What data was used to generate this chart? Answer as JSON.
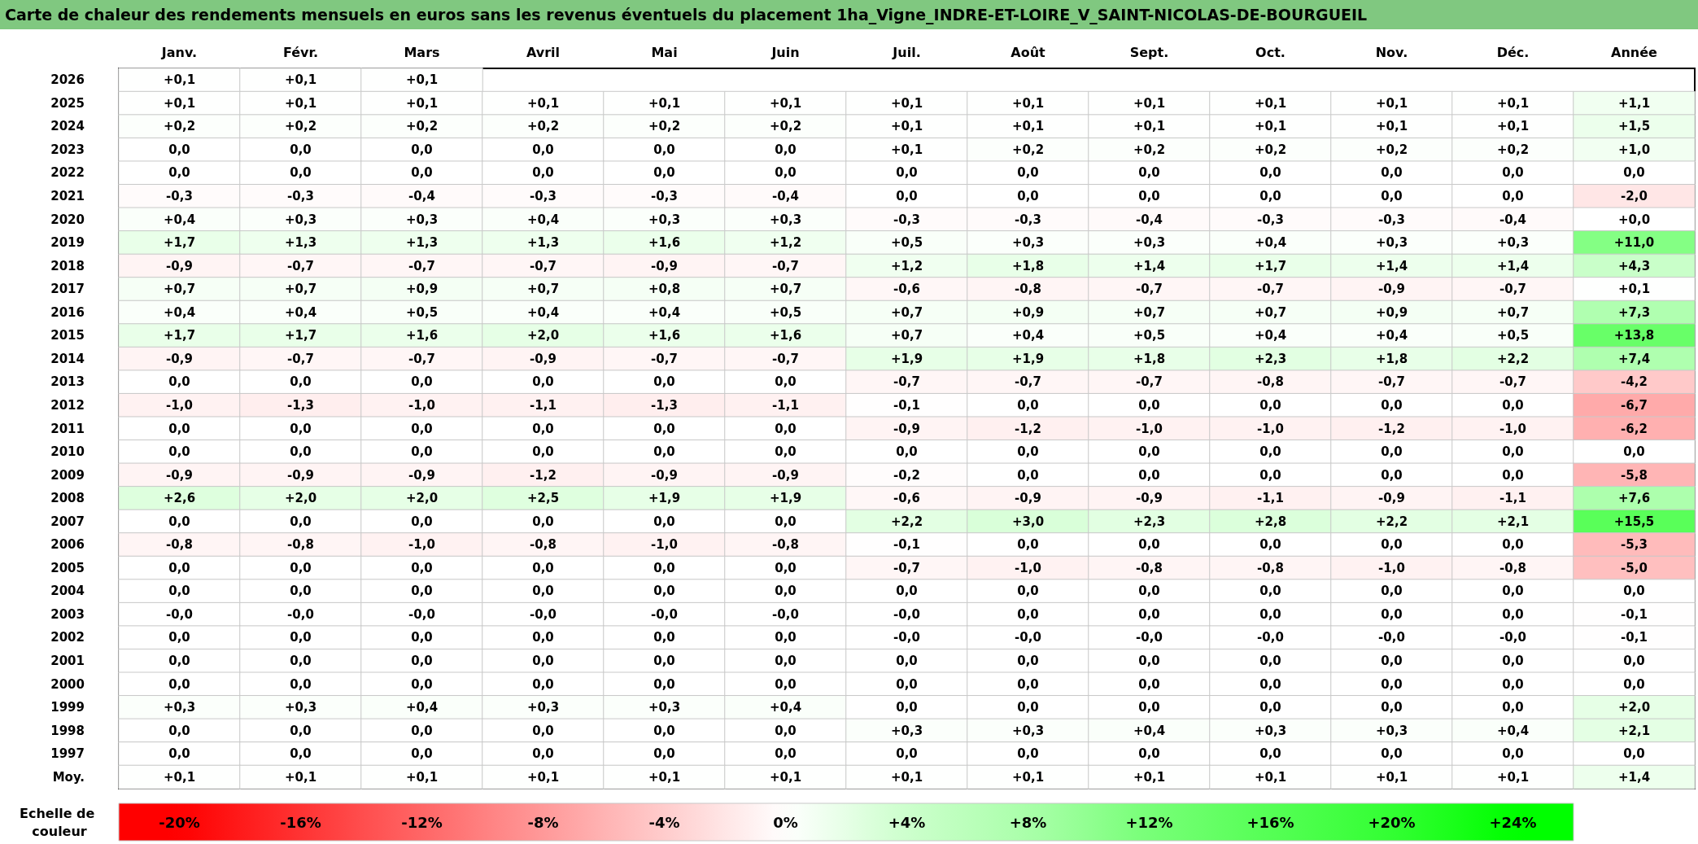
{
  "chart_data": {
    "type": "heatmap",
    "title": "Carte de chaleur des rendements mensuels en euros sans les revenus éventuels du placement 1ha_Vigne_INDRE-ET-LOIRE_V_SAINT-NICOLAS-DE-BOURGUEIL",
    "clabel": "Echelle de couleur",
    "categories": [
      "Janv.",
      "Févr.",
      "Mars",
      "Avril",
      "Mai",
      "Juin",
      "Juil.",
      "Août",
      "Sept.",
      "Oct.",
      "Nov.",
      "Déc.",
      "Année"
    ],
    "y_categories": [
      "2026",
      "2025",
      "2024",
      "2023",
      "2022",
      "2021",
      "2020",
      "2019",
      "2018",
      "2017",
      "2016",
      "2015",
      "2014",
      "2013",
      "2012",
      "2011",
      "2010",
      "2009",
      "2008",
      "2007",
      "2006",
      "2005",
      "2004",
      "2003",
      "2002",
      "2001",
      "2000",
      "1999",
      "1998",
      "1997",
      "Moy."
    ],
    "clim": [
      -20,
      24
    ],
    "cticks": [
      {
        "value": -20,
        "label": "-20%"
      },
      {
        "value": -16,
        "label": "-16%"
      },
      {
        "value": -12,
        "label": "-12%"
      },
      {
        "value": -8,
        "label": "-8%"
      },
      {
        "value": -4,
        "label": "-4%"
      },
      {
        "value": 0,
        "label": "0%"
      },
      {
        "value": 4,
        "label": "+4%"
      },
      {
        "value": 8,
        "label": "+8%"
      },
      {
        "value": 12,
        "label": "+12%"
      },
      {
        "value": 16,
        "label": "+16%"
      },
      {
        "value": 20,
        "label": "+20%"
      },
      {
        "value": 24,
        "label": "+24%"
      }
    ],
    "cells": [
      [
        0.1,
        0.1,
        0.1,
        null,
        null,
        null,
        null,
        null,
        null,
        null,
        null,
        null,
        null
      ],
      [
        0.1,
        0.1,
        0.1,
        0.1,
        0.1,
        0.1,
        0.1,
        0.1,
        0.1,
        0.1,
        0.1,
        0.1,
        1.1
      ],
      [
        0.2,
        0.2,
        0.2,
        0.2,
        0.2,
        0.2,
        0.1,
        0.1,
        0.1,
        0.1,
        0.1,
        0.1,
        1.5
      ],
      [
        0,
        0,
        0,
        0,
        0,
        0,
        0.1,
        0.2,
        0.2,
        0.2,
        0.2,
        0.2,
        1.0
      ],
      [
        0,
        0,
        0,
        0,
        0,
        0,
        0,
        0,
        0,
        0,
        0,
        0,
        0
      ],
      [
        -0.3,
        -0.3,
        -0.4,
        -0.3,
        -0.3,
        -0.4,
        0,
        0,
        0,
        0,
        0,
        0,
        -2.0
      ],
      [
        0.4,
        0.3,
        0.3,
        0.4,
        0.3,
        0.3,
        -0.3,
        -0.3,
        -0.4,
        -0.3,
        -0.3,
        -0.4,
        0
      ],
      [
        1.7,
        1.3,
        1.3,
        1.3,
        1.6,
        1.2,
        0.5,
        0.3,
        0.3,
        0.4,
        0.3,
        0.3,
        11.0
      ],
      [
        -0.9,
        -0.7,
        -0.7,
        -0.7,
        -0.9,
        -0.7,
        1.2,
        1.8,
        1.4,
        1.7,
        1.4,
        1.4,
        4.3
      ],
      [
        0.7,
        0.7,
        0.9,
        0.7,
        0.8,
        0.7,
        -0.6,
        -0.8,
        -0.7,
        -0.7,
        -0.9,
        -0.7,
        0.1
      ],
      [
        0.4,
        0.4,
        0.5,
        0.4,
        0.4,
        0.5,
        0.7,
        0.9,
        0.7,
        0.7,
        0.9,
        0.7,
        7.3
      ],
      [
        1.7,
        1.7,
        1.6,
        2.0,
        1.6,
        1.6,
        0.7,
        0.4,
        0.5,
        0.4,
        0.4,
        0.5,
        13.8
      ],
      [
        -0.9,
        -0.7,
        -0.7,
        -0.9,
        -0.7,
        -0.7,
        1.9,
        1.9,
        1.8,
        2.3,
        1.8,
        2.2,
        7.4
      ],
      [
        0,
        0,
        0,
        0,
        0,
        0,
        -0.7,
        -0.7,
        -0.7,
        -0.8,
        -0.7,
        -0.7,
        -4.2
      ],
      [
        -1.0,
        -1.3,
        -1.0,
        -1.1,
        -1.3,
        -1.1,
        -0.1,
        0,
        0,
        0,
        0,
        0,
        -6.7
      ],
      [
        0,
        0,
        0,
        0,
        0,
        0,
        -0.9,
        -1.2,
        -1.0,
        -1.0,
        -1.2,
        -1.0,
        -6.2
      ],
      [
        0,
        0,
        0,
        0,
        0,
        0,
        0,
        0,
        0,
        0,
        0,
        0,
        0
      ],
      [
        -0.9,
        -0.9,
        -0.9,
        -1.2,
        -0.9,
        -0.9,
        -0.2,
        0,
        0,
        0,
        0,
        0,
        -5.8
      ],
      [
        2.6,
        2.0,
        2.0,
        2.5,
        1.9,
        1.9,
        -0.6,
        -0.9,
        -0.9,
        -1.1,
        -0.9,
        -1.1,
        7.6
      ],
      [
        0,
        0,
        0,
        0,
        0,
        0,
        2.2,
        3.0,
        2.3,
        2.8,
        2.2,
        2.1,
        15.5
      ],
      [
        -0.8,
        -0.8,
        -1.0,
        -0.8,
        -1.0,
        -0.8,
        -0.1,
        0,
        0,
        0,
        0,
        0,
        -5.3
      ],
      [
        0,
        0,
        0,
        0,
        0,
        0,
        -0.7,
        -1.0,
        -0.8,
        -0.8,
        -1.0,
        -0.8,
        -5.0
      ],
      [
        0,
        0,
        0,
        0,
        0,
        0,
        0,
        0,
        0,
        0,
        0,
        0,
        0
      ],
      [
        0,
        0,
        0,
        0,
        0,
        0,
        0,
        0,
        0,
        0,
        0,
        0,
        -0.1
      ],
      [
        0,
        0,
        0,
        0,
        0,
        0,
        0,
        0,
        0,
        0,
        0,
        0,
        -0.1
      ],
      [
        0,
        0,
        0,
        0,
        0,
        0,
        0,
        0,
        0,
        0,
        0,
        0,
        0
      ],
      [
        0,
        0,
        0,
        0,
        0,
        0,
        0,
        0,
        0,
        0,
        0,
        0,
        0
      ],
      [
        0.3,
        0.3,
        0.4,
        0.3,
        0.3,
        0.4,
        0,
        0,
        0,
        0,
        0,
        0,
        2.0
      ],
      [
        0,
        0,
        0,
        0,
        0,
        0,
        0.3,
        0.3,
        0.4,
        0.3,
        0.3,
        0.4,
        2.1
      ],
      [
        0,
        0,
        0,
        0,
        0,
        0,
        0,
        0,
        0,
        0,
        0,
        0,
        0
      ],
      [
        0.1,
        0.1,
        0.1,
        0.1,
        0.1,
        0.1,
        0.1,
        0.1,
        0.1,
        0.1,
        0.1,
        0.1,
        1.4
      ]
    ],
    "cell_labels": [
      [
        "+0,1",
        "+0,1",
        "+0,1",
        null,
        null,
        null,
        null,
        null,
        null,
        null,
        null,
        null,
        null
      ],
      [
        "+0,1",
        "+0,1",
        "+0,1",
        "+0,1",
        "+0,1",
        "+0,1",
        "+0,1",
        "+0,1",
        "+0,1",
        "+0,1",
        "+0,1",
        "+0,1",
        "+1,1"
      ],
      [
        "+0,2",
        "+0,2",
        "+0,2",
        "+0,2",
        "+0,2",
        "+0,2",
        "+0,1",
        "+0,1",
        "+0,1",
        "+0,1",
        "+0,1",
        "+0,1",
        "+1,5"
      ],
      [
        "0,0",
        "0,0",
        "0,0",
        "0,0",
        "0,0",
        "0,0",
        "+0,1",
        "+0,2",
        "+0,2",
        "+0,2",
        "+0,2",
        "+0,2",
        "+1,0"
      ],
      [
        "0,0",
        "0,0",
        "0,0",
        "0,0",
        "0,0",
        "0,0",
        "0,0",
        "0,0",
        "0,0",
        "0,0",
        "0,0",
        "0,0",
        "0,0"
      ],
      [
        "-0,3",
        "-0,3",
        "-0,4",
        "-0,3",
        "-0,3",
        "-0,4",
        "0,0",
        "0,0",
        "0,0",
        "0,0",
        "0,0",
        "0,0",
        "-2,0"
      ],
      [
        "+0,4",
        "+0,3",
        "+0,3",
        "+0,4",
        "+0,3",
        "+0,3",
        "-0,3",
        "-0,3",
        "-0,4",
        "-0,3",
        "-0,3",
        "-0,4",
        "+0,0"
      ],
      [
        "+1,7",
        "+1,3",
        "+1,3",
        "+1,3",
        "+1,6",
        "+1,2",
        "+0,5",
        "+0,3",
        "+0,3",
        "+0,4",
        "+0,3",
        "+0,3",
        "+11,0"
      ],
      [
        "-0,9",
        "-0,7",
        "-0,7",
        "-0,7",
        "-0,9",
        "-0,7",
        "+1,2",
        "+1,8",
        "+1,4",
        "+1,7",
        "+1,4",
        "+1,4",
        "+4,3"
      ],
      [
        "+0,7",
        "+0,7",
        "+0,9",
        "+0,7",
        "+0,8",
        "+0,7",
        "-0,6",
        "-0,8",
        "-0,7",
        "-0,7",
        "-0,9",
        "-0,7",
        "+0,1"
      ],
      [
        "+0,4",
        "+0,4",
        "+0,5",
        "+0,4",
        "+0,4",
        "+0,5",
        "+0,7",
        "+0,9",
        "+0,7",
        "+0,7",
        "+0,9",
        "+0,7",
        "+7,3"
      ],
      [
        "+1,7",
        "+1,7",
        "+1,6",
        "+2,0",
        "+1,6",
        "+1,6",
        "+0,7",
        "+0,4",
        "+0,5",
        "+0,4",
        "+0,4",
        "+0,5",
        "+13,8"
      ],
      [
        "-0,9",
        "-0,7",
        "-0,7",
        "-0,9",
        "-0,7",
        "-0,7",
        "+1,9",
        "+1,9",
        "+1,8",
        "+2,3",
        "+1,8",
        "+2,2",
        "+7,4"
      ],
      [
        "0,0",
        "0,0",
        "0,0",
        "0,0",
        "0,0",
        "0,0",
        "-0,7",
        "-0,7",
        "-0,7",
        "-0,8",
        "-0,7",
        "-0,7",
        "-4,2"
      ],
      [
        "-1,0",
        "-1,3",
        "-1,0",
        "-1,1",
        "-1,3",
        "-1,1",
        "-0,1",
        "0,0",
        "0,0",
        "0,0",
        "0,0",
        "0,0",
        "-6,7"
      ],
      [
        "0,0",
        "0,0",
        "0,0",
        "0,0",
        "0,0",
        "0,0",
        "-0,9",
        "-1,2",
        "-1,0",
        "-1,0",
        "-1,2",
        "-1,0",
        "-6,2"
      ],
      [
        "0,0",
        "0,0",
        "0,0",
        "0,0",
        "0,0",
        "0,0",
        "0,0",
        "0,0",
        "0,0",
        "0,0",
        "0,0",
        "0,0",
        "0,0"
      ],
      [
        "-0,9",
        "-0,9",
        "-0,9",
        "-1,2",
        "-0,9",
        "-0,9",
        "-0,2",
        "0,0",
        "0,0",
        "0,0",
        "0,0",
        "0,0",
        "-5,8"
      ],
      [
        "+2,6",
        "+2,0",
        "+2,0",
        "+2,5",
        "+1,9",
        "+1,9",
        "-0,6",
        "-0,9",
        "-0,9",
        "-1,1",
        "-0,9",
        "-1,1",
        "+7,6"
      ],
      [
        "0,0",
        "0,0",
        "0,0",
        "0,0",
        "0,0",
        "0,0",
        "+2,2",
        "+3,0",
        "+2,3",
        "+2,8",
        "+2,2",
        "+2,1",
        "+15,5"
      ],
      [
        "-0,8",
        "-0,8",
        "-1,0",
        "-0,8",
        "-1,0",
        "-0,8",
        "-0,1",
        "0,0",
        "0,0",
        "0,0",
        "0,0",
        "0,0",
        "-5,3"
      ],
      [
        "0,0",
        "0,0",
        "0,0",
        "0,0",
        "0,0",
        "0,0",
        "-0,7",
        "-1,0",
        "-0,8",
        "-0,8",
        "-1,0",
        "-0,8",
        "-5,0"
      ],
      [
        "0,0",
        "0,0",
        "0,0",
        "0,0",
        "0,0",
        "0,0",
        "0,0",
        "0,0",
        "0,0",
        "0,0",
        "0,0",
        "0,0",
        "0,0"
      ],
      [
        "-0,0",
        "-0,0",
        "-0,0",
        "-0,0",
        "-0,0",
        "-0,0",
        "-0,0",
        "0,0",
        "0,0",
        "0,0",
        "0,0",
        "0,0",
        "-0,1"
      ],
      [
        "0,0",
        "0,0",
        "0,0",
        "0,0",
        "0,0",
        "0,0",
        "-0,0",
        "-0,0",
        "-0,0",
        "-0,0",
        "-0,0",
        "-0,0",
        "-0,1"
      ],
      [
        "0,0",
        "0,0",
        "0,0",
        "0,0",
        "0,0",
        "0,0",
        "0,0",
        "0,0",
        "0,0",
        "0,0",
        "0,0",
        "0,0",
        "0,0"
      ],
      [
        "0,0",
        "0,0",
        "0,0",
        "0,0",
        "0,0",
        "0,0",
        "0,0",
        "0,0",
        "0,0",
        "0,0",
        "0,0",
        "0,0",
        "0,0"
      ],
      [
        "+0,3",
        "+0,3",
        "+0,4",
        "+0,3",
        "+0,3",
        "+0,4",
        "0,0",
        "0,0",
        "0,0",
        "0,0",
        "0,0",
        "0,0",
        "+2,0"
      ],
      [
        "0,0",
        "0,0",
        "0,0",
        "0,0",
        "0,0",
        "0,0",
        "+0,3",
        "+0,3",
        "+0,4",
        "+0,3",
        "+0,3",
        "+0,4",
        "+2,1"
      ],
      [
        "0,0",
        "0,0",
        "0,0",
        "0,0",
        "0,0",
        "0,0",
        "0,0",
        "0,0",
        "0,0",
        "0,0",
        "0,0",
        "0,0",
        "0,0"
      ],
      [
        "+0,1",
        "+0,1",
        "+0,1",
        "+0,1",
        "+0,1",
        "+0,1",
        "+0,1",
        "+0,1",
        "+0,1",
        "+0,1",
        "+0,1",
        "+0,1",
        "+1,4"
      ]
    ]
  }
}
